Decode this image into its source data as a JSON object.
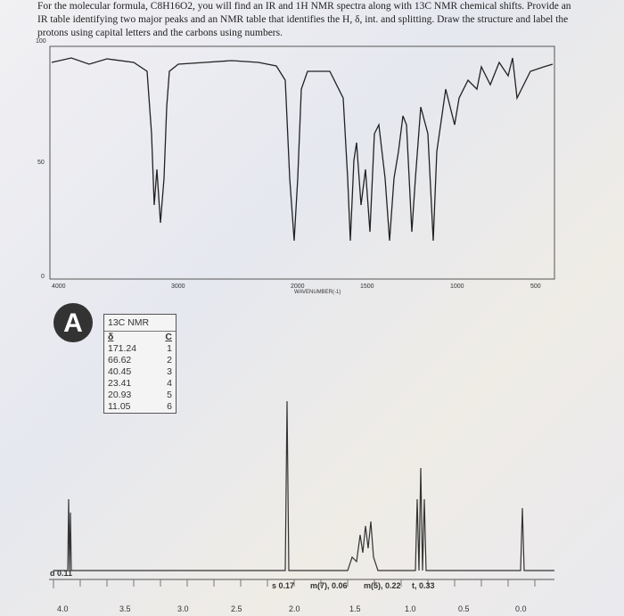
{
  "question": "For the molecular formula, C8H16O2, you will find an IR and 1H NMR spectra along with 13C NMR chemical shifts. Provide an IR table identifying two major peaks and an NMR table that identifies the H, δ, int. and splitting. Draw the structure and label the protons using capital letters and the carbons using numbers.",
  "ir_spectrum": {
    "y_axis_labels": [
      "100",
      "50",
      "0"
    ],
    "x_axis_labels": [
      "4000",
      "3000",
      "2000",
      "1500",
      "1000",
      "500"
    ],
    "x_axis_title": "WAVENUMBER(-1)"
  },
  "logo": "A",
  "c13_table": {
    "title": "13C NMR",
    "headers": [
      "δ",
      "C"
    ],
    "rows": [
      [
        "171.24",
        "1"
      ],
      [
        "66.62",
        "2"
      ],
      [
        "40.45",
        "3"
      ],
      [
        "23.41",
        "4"
      ],
      [
        "20.93",
        "5"
      ],
      [
        "11.05",
        "6"
      ]
    ]
  },
  "h1_nmr": {
    "annotations": [
      "d 0.11",
      "s 0.17",
      "m(7), 0.06",
      "m(5), 0.22",
      "t, 0.33"
    ],
    "x_axis_labels": [
      "4.0",
      "3.5",
      "3.0",
      "2.5",
      "2.0",
      "1.5",
      "1.0",
      "0.5",
      "0.0"
    ]
  }
}
